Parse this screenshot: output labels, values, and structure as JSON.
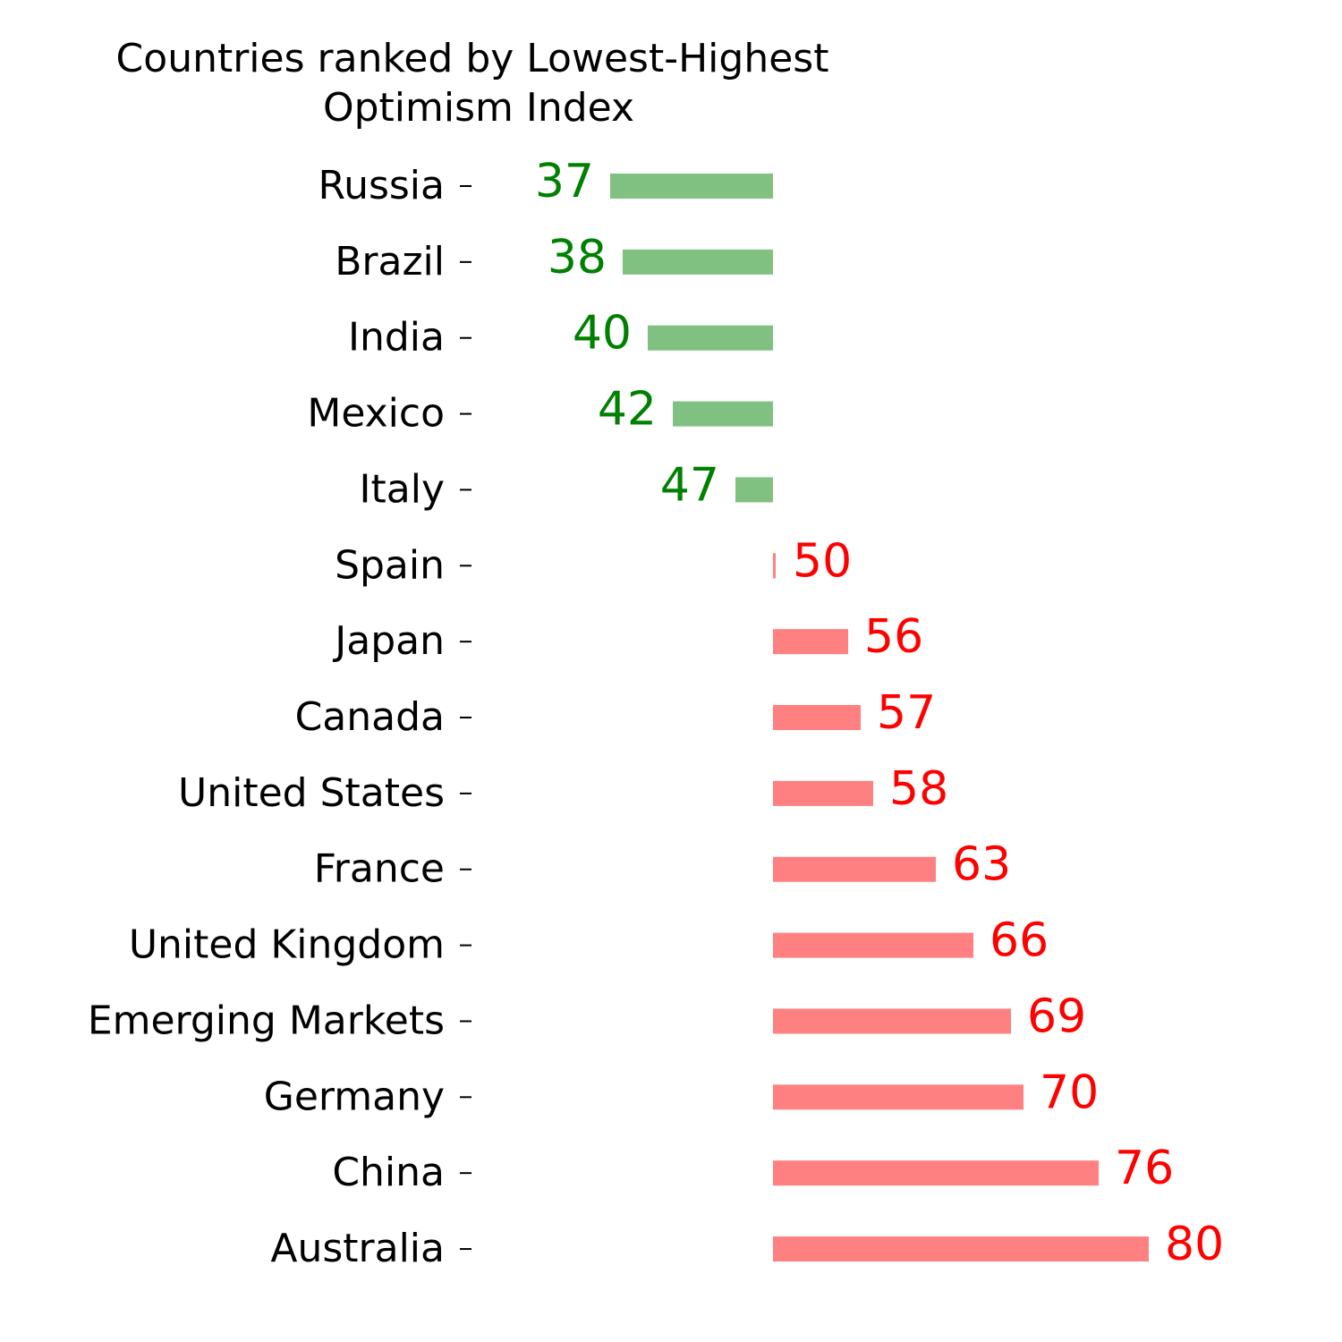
{
  "chart_data": {
    "type": "diverging-bar",
    "title": [
      "Countries ranked by Lowest-Highest",
      "Optimism Index"
    ],
    "categories": [
      "Russia",
      "Brazil",
      "India",
      "Mexico",
      "Italy",
      "Spain",
      "Japan",
      "Canada",
      "United States",
      "France",
      "United Kingdom",
      "Emerging Markets",
      "Germany",
      "China",
      "Australia"
    ],
    "values": [
      37,
      38,
      40,
      42,
      47,
      50,
      56,
      57,
      58,
      63,
      66,
      69,
      70,
      76,
      80
    ],
    "baseline": 50,
    "xlim": [
      26,
      84
    ],
    "below_color": "#80c080",
    "above_color": "#ff8080",
    "below_label_color": "#008000",
    "above_label_color": "#ff0000"
  }
}
